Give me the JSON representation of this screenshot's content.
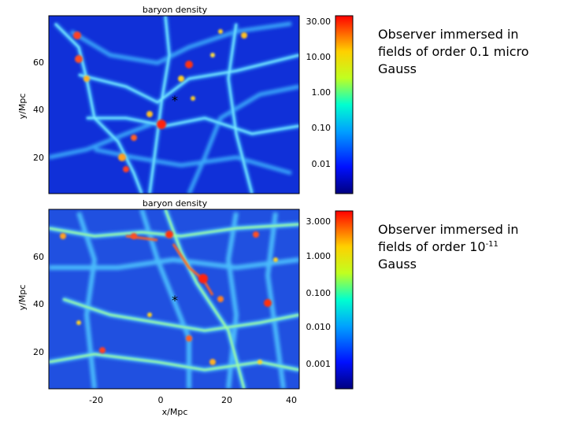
{
  "panels": [
    {
      "title": "baryon density",
      "y_axis_label": "y/Mpc",
      "y_ticks": [
        "60",
        "40",
        "20"
      ],
      "colorbar_ticks": [
        "30.00",
        "10.00",
        "1.00",
        "0.10",
        "0.01"
      ],
      "caption_lines": [
        "Observer immersed in",
        "fields of order 0.1 micro",
        "Gauss"
      ]
    },
    {
      "title": "baryon density",
      "y_axis_label": "y/Mpc",
      "y_ticks": [
        "60",
        "40",
        "20"
      ],
      "x_ticks": [
        "-20",
        "0",
        "20",
        "40"
      ],
      "x_axis_label": "x/Mpc",
      "colorbar_ticks": [
        "3.000",
        "1.000",
        "0.100",
        "0.010",
        "0.001"
      ],
      "caption_line1_prefix": "Observer immersed in",
      "caption_line2_prefix": "fields of order 10",
      "caption_exponent": "-11",
      "caption_line3": "Gauss"
    }
  ],
  "observer_marker": "*",
  "colors": {
    "field_low": "#1020c8",
    "field_mid": "#30a0ff",
    "filament": "#60e0ff",
    "node_hot": "#ff3010",
    "node_warm": "#ffd020"
  }
}
